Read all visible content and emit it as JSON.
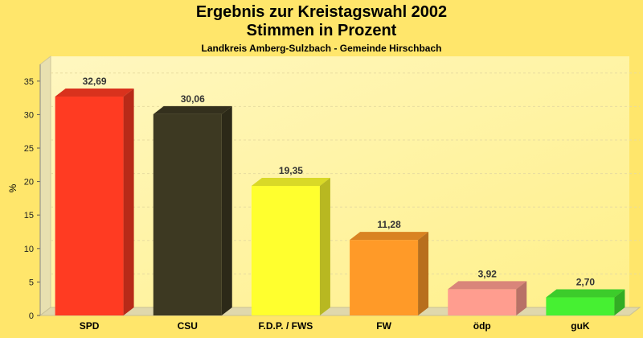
{
  "chart_data": {
    "type": "bar",
    "title": "Ergebnis zur Kreistagswahl 2002",
    "subtitle": "Stimmen in Prozent",
    "caption": "Landkreis Amberg-Sulzbach - Gemeinde Hirschbach",
    "ylabel": "%",
    "ylim": [
      0,
      37.5
    ],
    "yticks": [
      "0",
      "5",
      "10",
      "15",
      "20",
      "25",
      "30",
      "35"
    ],
    "categories": [
      "SPD",
      "CSU",
      "F.D.P. / FWS",
      "FW",
      "ödp",
      "guK"
    ],
    "values": [
      32.69,
      30.06,
      19.35,
      11.28,
      3.92,
      2.7
    ],
    "value_labels": [
      "32,69",
      "30,06",
      "19,35",
      "11,28",
      "3,92",
      "2,70"
    ],
    "colors": [
      "#ff3b22",
      "#3d3922",
      "#ffff2e",
      "#ff9a28",
      "#ff9d8f",
      "#46f032"
    ],
    "background_color": "#ffe66b",
    "grid": true,
    "style": "3d"
  }
}
